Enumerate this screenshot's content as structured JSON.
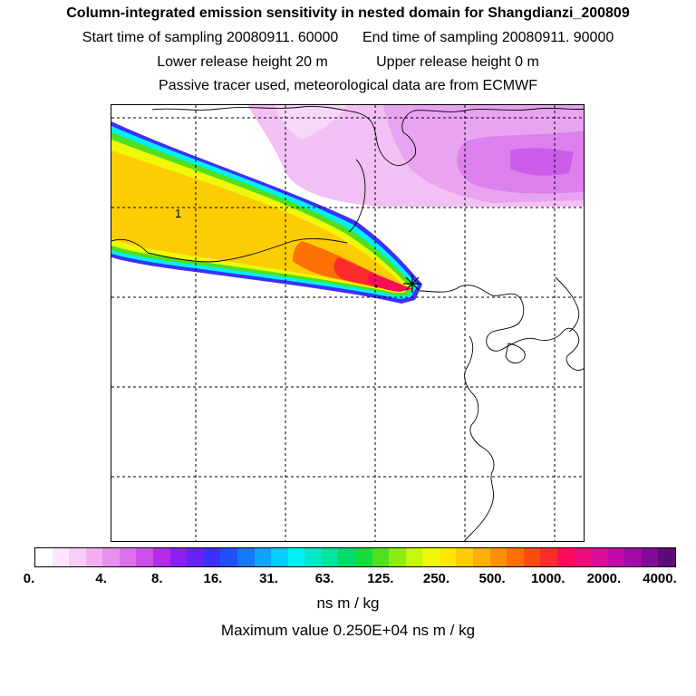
{
  "header": {
    "title": "Column-integrated emission sensitivity in nested domain for Shangdianzi_200809",
    "start_label": "Start time of sampling 20080911. 60000",
    "end_label": "End time of sampling 20080911. 90000",
    "lower_label": "Lower release height   20 m",
    "upper_label": "Upper release height    0 m",
    "tracer_note": "Passive tracer used, meteorological data are from ECMWF"
  },
  "map": {
    "contour_label": "1",
    "release_marker": "release-site-star"
  },
  "colorbar": {
    "colors": [
      "#ffffff",
      "#fde6fd",
      "#f8ccf8",
      "#f2b0f2",
      "#e890ee",
      "#dc72ea",
      "#cc50e8",
      "#b42ce8",
      "#8c20f0",
      "#6424f8",
      "#3c30fc",
      "#2050fc",
      "#1478fc",
      "#0ca4fc",
      "#04ccfc",
      "#00f0f4",
      "#00e8c8",
      "#00e49c",
      "#00dc6c",
      "#14dc3c",
      "#50e020",
      "#8cec10",
      "#c4f80c",
      "#eef808",
      "#fce804",
      "#fccc04",
      "#fcb004",
      "#fc9004",
      "#fc7004",
      "#fc4c0c",
      "#fc2c2c",
      "#fc0c58",
      "#f00c80",
      "#dc0c98",
      "#c00ca8",
      "#a00ca8",
      "#800c98",
      "#5c0c78"
    ],
    "tick_labels": [
      "0.",
      "4.",
      "8.",
      "16.",
      "31.",
      "63.",
      "125.",
      "250.",
      "500.",
      "1000.",
      "2000.",
      "4000."
    ],
    "units": "ns m / kg",
    "max_value": "Maximum value  0.250E+04 ns m / kg"
  }
}
